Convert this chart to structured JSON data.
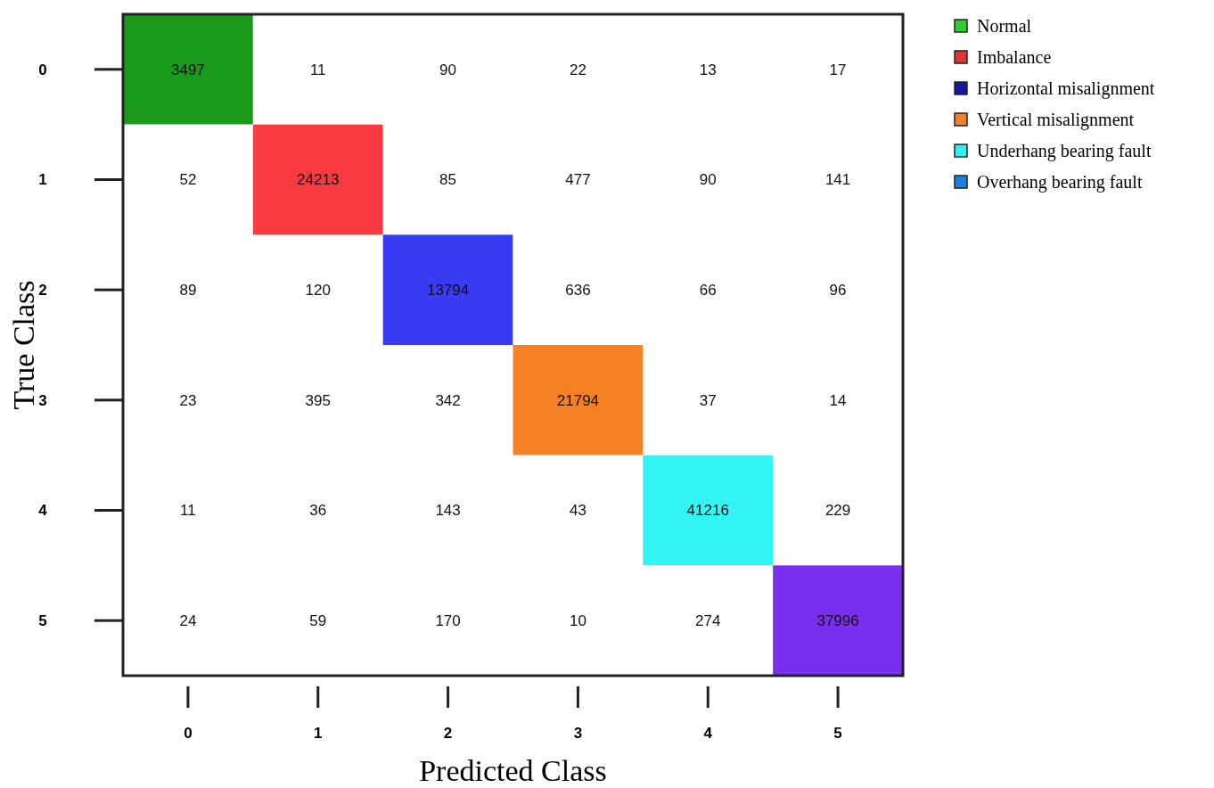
{
  "chart_data": {
    "type": "heatmap",
    "xlabel": "Predicted Class",
    "ylabel": "True Class",
    "categories": [
      "0",
      "1",
      "2",
      "3",
      "4",
      "5"
    ],
    "y_categories": [
      "0",
      "1",
      "2",
      "3",
      "4",
      "5"
    ],
    "cells": [
      [
        3497,
        11,
        90,
        22,
        13,
        17
      ],
      [
        52,
        24213,
        85,
        477,
        90,
        141
      ],
      [
        89,
        120,
        13794,
        636,
        66,
        96
      ],
      [
        23,
        395,
        342,
        21794,
        37,
        14
      ],
      [
        11,
        36,
        143,
        43,
        41216,
        229
      ],
      [
        24,
        59,
        170,
        10,
        274,
        37996
      ]
    ],
    "colors": [
      "#1a9a1a",
      "#f93a41",
      "#3a3af5",
      "#f58025",
      "#33f5f5",
      "#7a2ff0"
    ],
    "data_labels": true,
    "legend": "right",
    "series": [
      {
        "name": "Normal",
        "color": "#2ecc2e",
        "values": [
          null,
          null,
          null,
          null,
          null,
          null
        ]
      },
      {
        "name": "Imbalance",
        "color": "#e03535",
        "values": [
          null,
          null,
          null,
          null,
          null,
          null
        ]
      },
      {
        "name": "Horizontal misalignment",
        "color": "#1515a0",
        "values": [
          null,
          null,
          null,
          null,
          null,
          null
        ]
      },
      {
        "name": "Vertical misalignment",
        "color": "#f08030",
        "values": [
          null,
          null,
          null,
          null,
          null,
          null
        ]
      },
      {
        "name": "Underhang bearing fault",
        "color": "#30f0f0",
        "values": [
          null,
          null,
          null,
          null,
          null,
          null
        ]
      },
      {
        "name": "Overhang bearing fault",
        "color": "#2080e0",
        "values": [
          null,
          null,
          null,
          null,
          null,
          null
        ]
      }
    ]
  }
}
